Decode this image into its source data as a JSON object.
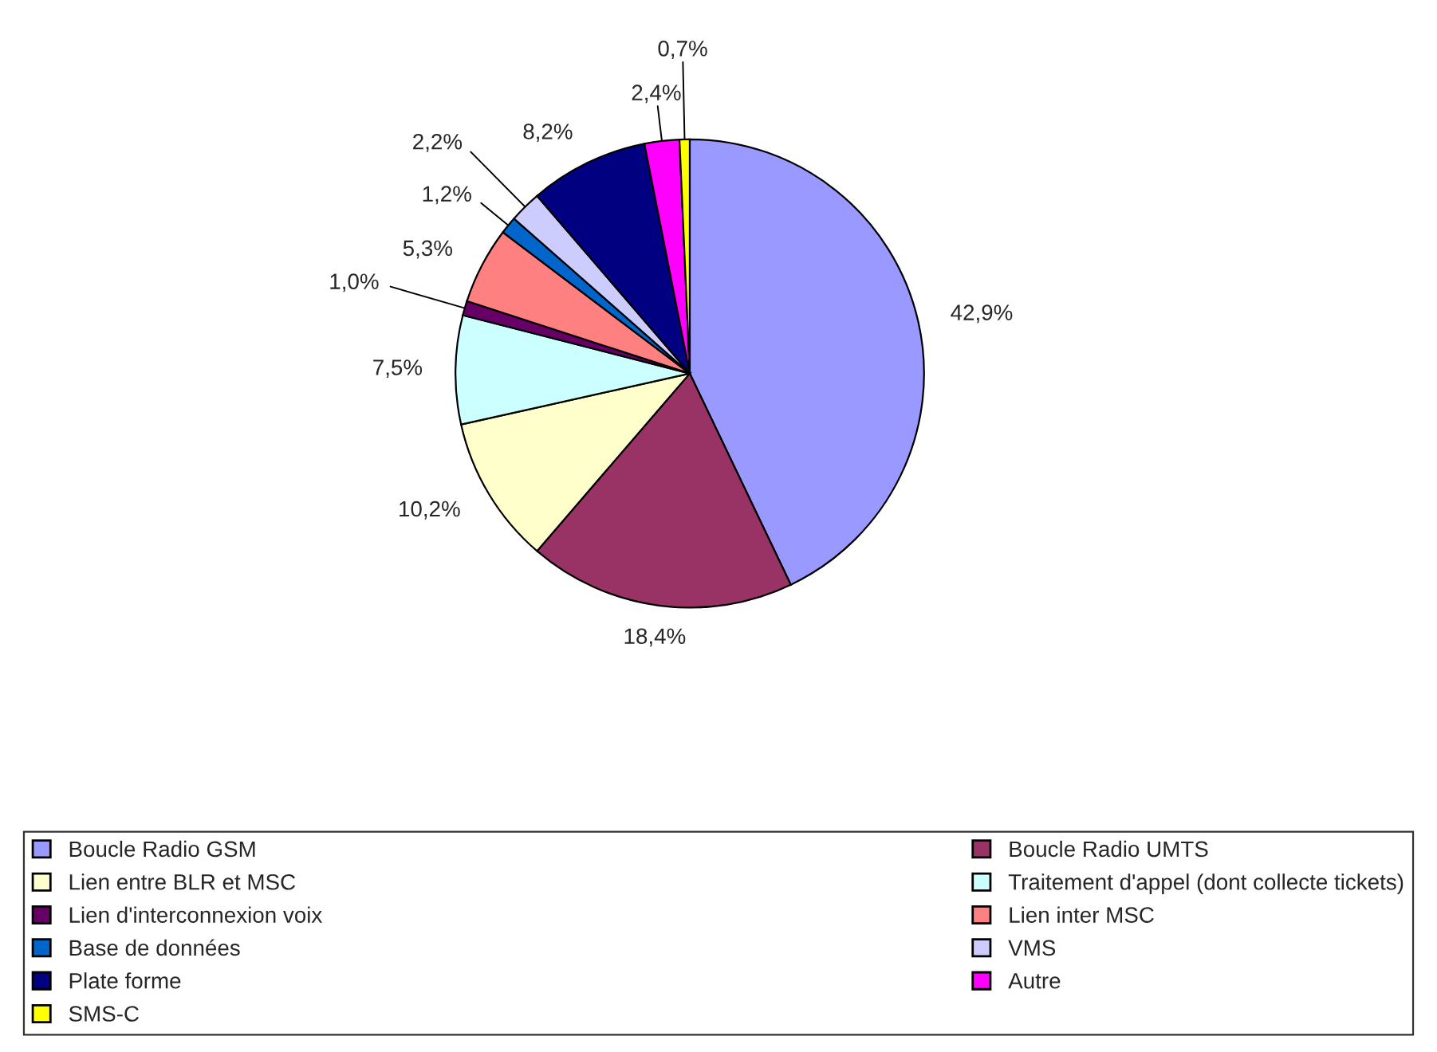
{
  "chart_data": {
    "type": "pie",
    "categories": [
      "Boucle Radio GSM",
      "Boucle Radio UMTS",
      "Lien entre BLR et MSC",
      "Traitement d'appel (dont collecte tickets)",
      "Lien d'interconnexion voix",
      "Lien inter MSC",
      "Base de données",
      "VMS",
      "Plate forme",
      "Autre",
      "SMS-C"
    ],
    "values": [
      42.9,
      18.4,
      10.2,
      7.5,
      1.0,
      5.3,
      1.2,
      2.2,
      8.2,
      2.4,
      0.7
    ],
    "colors": [
      "#9999ff",
      "#993366",
      "#ffffcc",
      "#ccffff",
      "#660066",
      "#ff8080",
      "#0066cc",
      "#ccccff",
      "#000080",
      "#ff00ff",
      "#ffff00"
    ],
    "value_labels": [
      "42,9%",
      "18,4%",
      "10,2%",
      "7,5%",
      "1,0%",
      "5,3%",
      "1,2%",
      "2,2%",
      "8,2%",
      "2,4%",
      "0,7%"
    ],
    "legend": "bottom"
  }
}
